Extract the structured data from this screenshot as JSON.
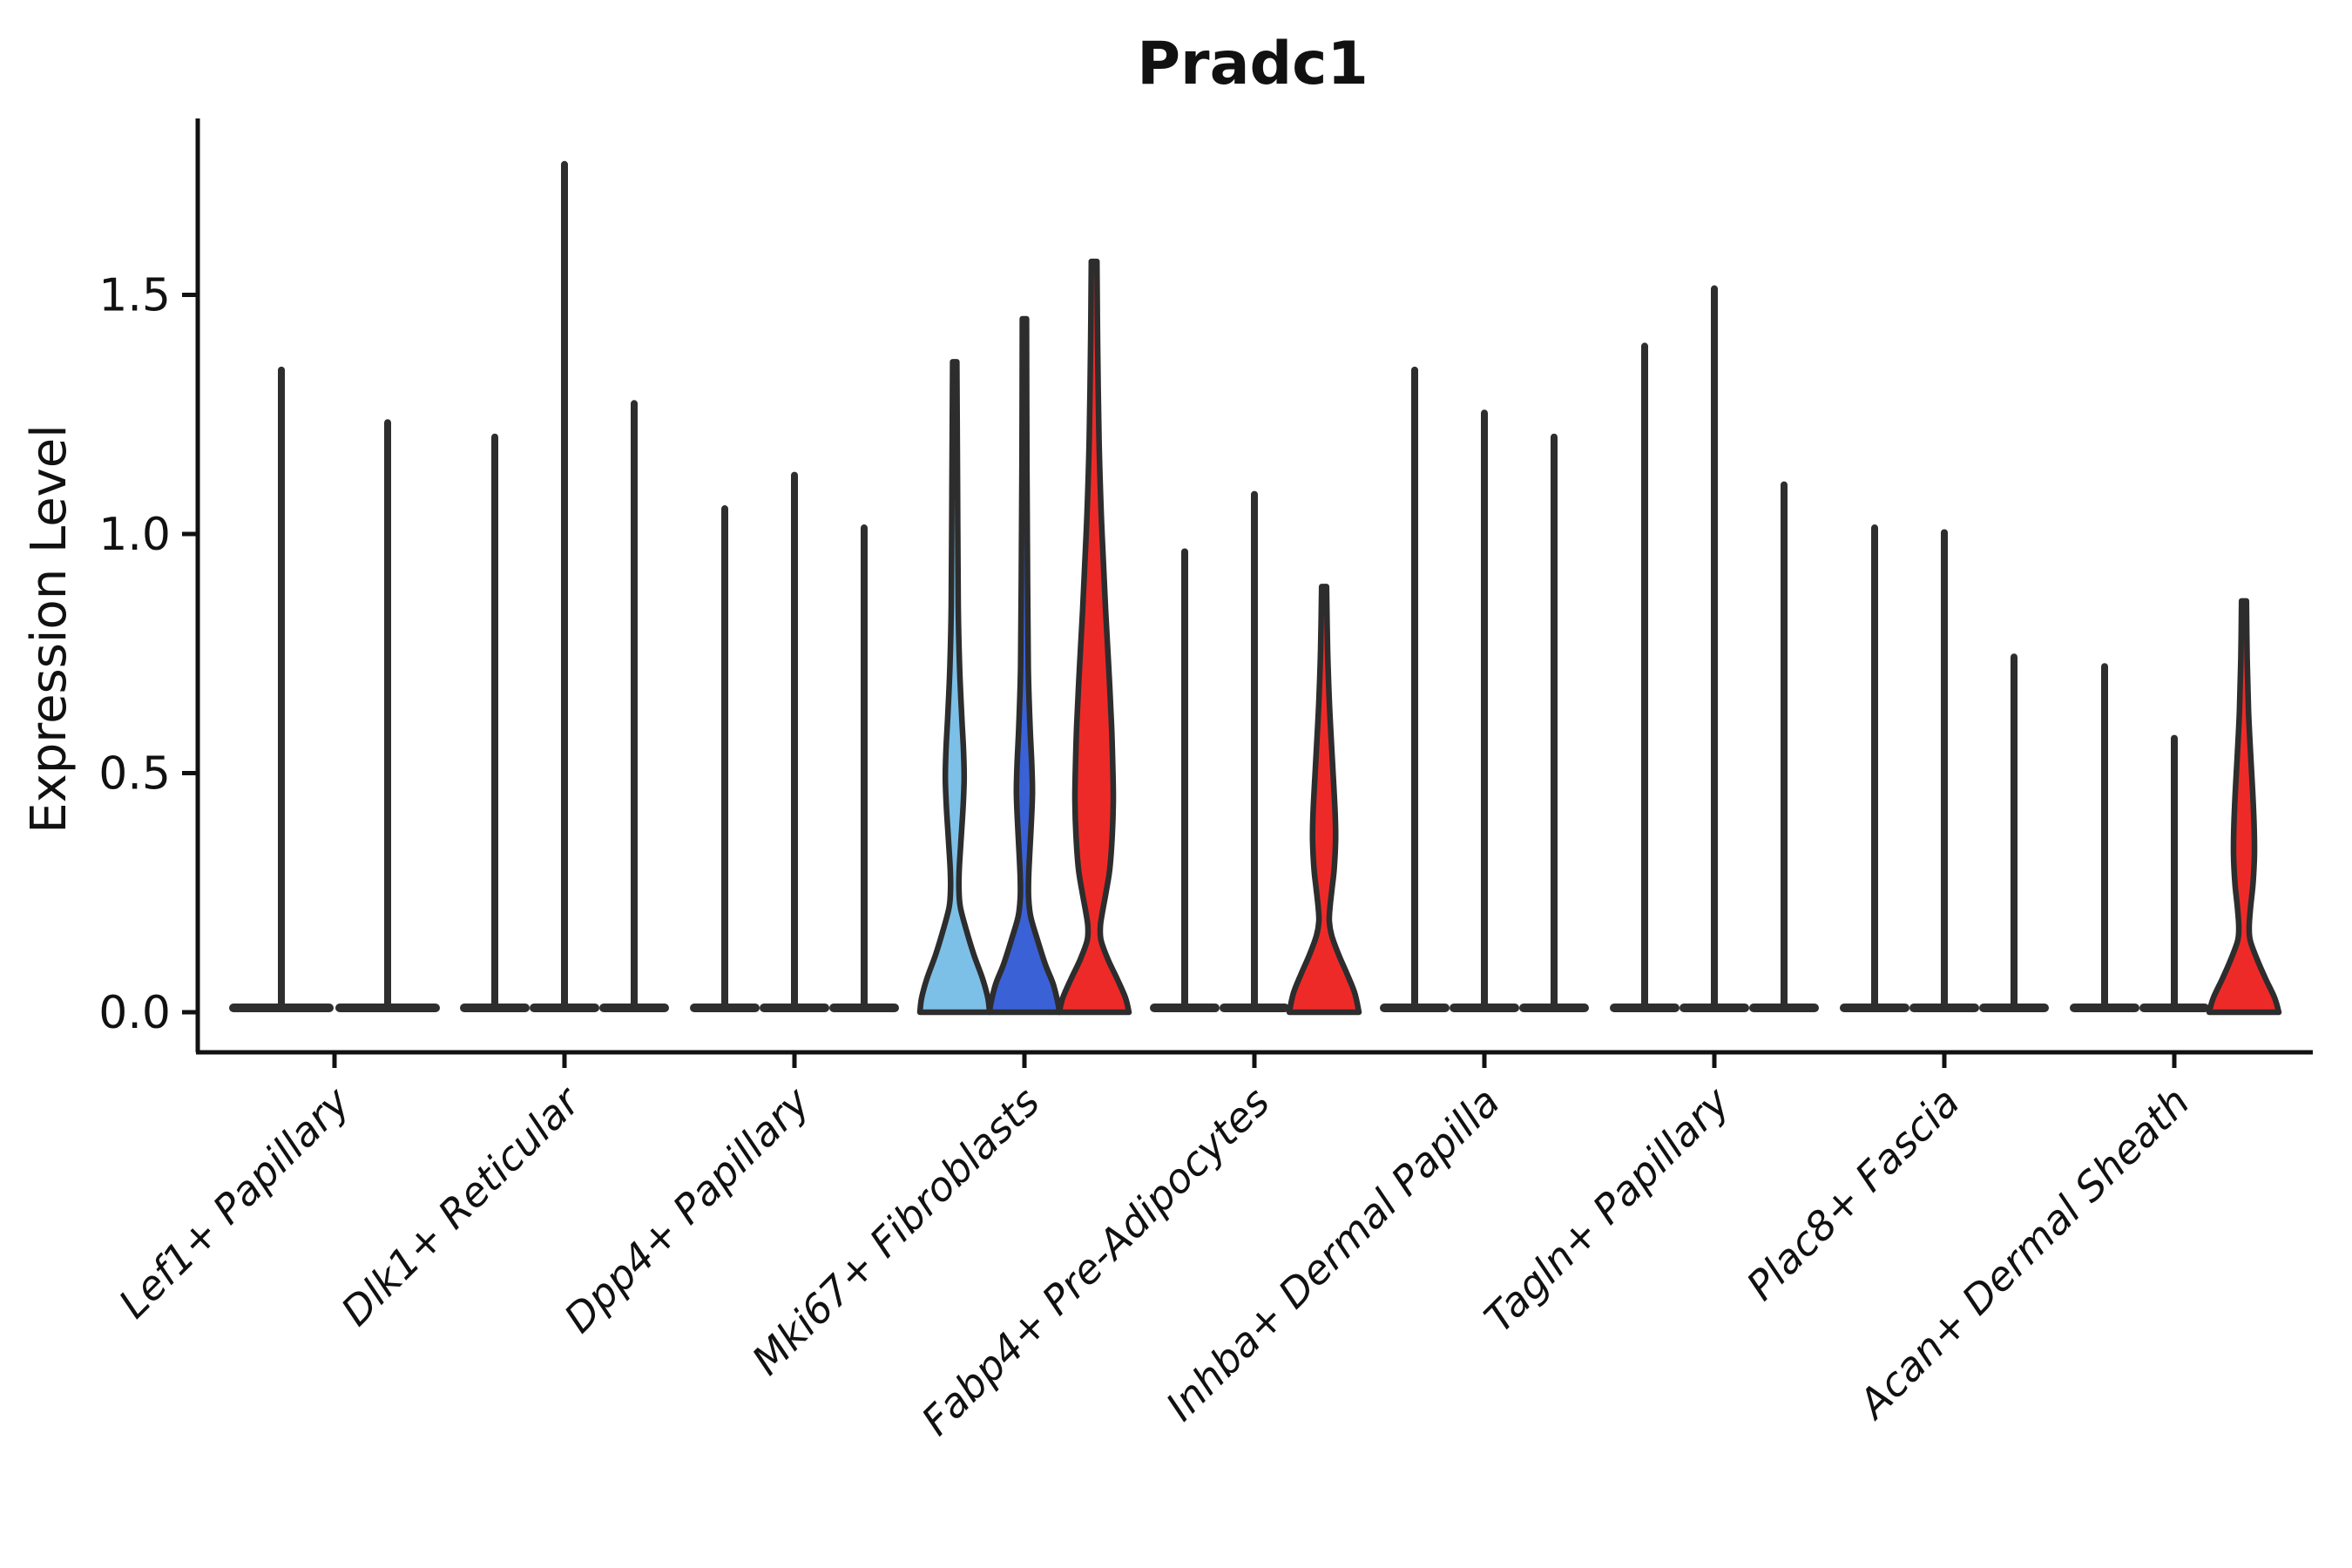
{
  "chart_data": {
    "type": "violin",
    "title": "Pradc1",
    "ylabel": "Expression Level",
    "xlabel": "",
    "ytick_labels": [
      "0.0",
      "0.5",
      "1.0",
      "1.5"
    ],
    "ytick_values": [
      0.0,
      0.5,
      1.0,
      1.5
    ],
    "ylim": [
      -0.085,
      1.87
    ],
    "grid": false,
    "legend": "none",
    "colors": {
      "dark": "#2e2e2e",
      "outline": "#2d2d2d",
      "axis": "#111111",
      "light_blue": "#7cc0e8",
      "royal_blue": "#3a62d6",
      "red": "#ee2a28"
    },
    "groups": [
      {
        "label": "Lef1+ Papillary",
        "violins": [
          {
            "max": 1.35,
            "fill": "dark"
          },
          {
            "max": 1.24,
            "fill": "dark"
          }
        ]
      },
      {
        "label": "Dlk1+ Reticular",
        "violins": [
          {
            "max": 1.21,
            "fill": "dark"
          },
          {
            "max": 1.78,
            "fill": "dark"
          },
          {
            "max": 1.28,
            "fill": "dark"
          }
        ]
      },
      {
        "label": "Dpp4+ Papillary",
        "violins": [
          {
            "max": 1.06,
            "fill": "dark"
          },
          {
            "max": 1.13,
            "fill": "dark"
          },
          {
            "max": 1.02,
            "fill": "dark"
          }
        ]
      },
      {
        "label": "Mki67+ Fibroblasts",
        "violins": [
          {
            "max": 1.36,
            "fill": "light_blue",
            "profile": [
              [
                1.36,
                0.06
              ],
              [
                1.1,
                0.08
              ],
              [
                0.85,
                0.1
              ],
              [
                0.72,
                0.14
              ],
              [
                0.62,
                0.2
              ],
              [
                0.55,
                0.25
              ],
              [
                0.49,
                0.27
              ],
              [
                0.43,
                0.24
              ],
              [
                0.36,
                0.18
              ],
              [
                0.3,
                0.13
              ],
              [
                0.26,
                0.12
              ],
              [
                0.22,
                0.16
              ],
              [
                0.17,
                0.34
              ],
              [
                0.12,
                0.55
              ],
              [
                0.07,
                0.8
              ],
              [
                0.03,
                0.95
              ],
              [
                0.0,
                1.0
              ]
            ]
          },
          {
            "max": 1.45,
            "fill": "royal_blue",
            "profile": [
              [
                1.45,
                0.06
              ],
              [
                1.15,
                0.07
              ],
              [
                0.9,
                0.09
              ],
              [
                0.72,
                0.11
              ],
              [
                0.6,
                0.16
              ],
              [
                0.52,
                0.21
              ],
              [
                0.46,
                0.23
              ],
              [
                0.4,
                0.2
              ],
              [
                0.33,
                0.15
              ],
              [
                0.28,
                0.12
              ],
              [
                0.24,
                0.12
              ],
              [
                0.2,
                0.18
              ],
              [
                0.15,
                0.38
              ],
              [
                0.1,
                0.6
              ],
              [
                0.06,
                0.82
              ],
              [
                0.02,
                0.96
              ],
              [
                0.0,
                1.0
              ]
            ]
          },
          {
            "max": 1.57,
            "fill": "red",
            "profile": [
              [
                1.57,
                0.08
              ],
              [
                1.4,
                0.1
              ],
              [
                1.2,
                0.14
              ],
              [
                1.05,
                0.2
              ],
              [
                0.95,
                0.26
              ],
              [
                0.84,
                0.33
              ],
              [
                0.72,
                0.42
              ],
              [
                0.6,
                0.5
              ],
              [
                0.5,
                0.54
              ],
              [
                0.44,
                0.55
              ],
              [
                0.37,
                0.52
              ],
              [
                0.3,
                0.45
              ],
              [
                0.25,
                0.34
              ],
              [
                0.21,
                0.24
              ],
              [
                0.18,
                0.18
              ],
              [
                0.15,
                0.2
              ],
              [
                0.11,
                0.4
              ],
              [
                0.07,
                0.66
              ],
              [
                0.03,
                0.9
              ],
              [
                0.0,
                1.0
              ]
            ]
          }
        ]
      },
      {
        "label": "Fabp4+ Pre-Adipocytes",
        "violins": [
          {
            "max": 0.97,
            "fill": "dark"
          },
          {
            "max": 1.09,
            "fill": "dark"
          },
          {
            "max": 0.89,
            "fill": "red",
            "profile": [
              [
                0.89,
                0.07
              ],
              [
                0.76,
                0.1
              ],
              [
                0.65,
                0.15
              ],
              [
                0.55,
                0.22
              ],
              [
                0.47,
                0.28
              ],
              [
                0.41,
                0.32
              ],
              [
                0.36,
                0.33
              ],
              [
                0.3,
                0.29
              ],
              [
                0.26,
                0.23
              ],
              [
                0.22,
                0.17
              ],
              [
                0.19,
                0.15
              ],
              [
                0.16,
                0.22
              ],
              [
                0.12,
                0.42
              ],
              [
                0.08,
                0.66
              ],
              [
                0.04,
                0.88
              ],
              [
                0.0,
                1.0
              ]
            ]
          }
        ]
      },
      {
        "label": "Inhba+ Dermal Papilla",
        "violins": [
          {
            "max": 1.35,
            "fill": "dark"
          },
          {
            "max": 1.26,
            "fill": "dark"
          },
          {
            "max": 1.21,
            "fill": "dark"
          }
        ]
      },
      {
        "label": "Tagln+ Papillary",
        "violins": [
          {
            "max": 1.4,
            "fill": "dark"
          },
          {
            "max": 1.52,
            "fill": "dark"
          },
          {
            "max": 1.11,
            "fill": "dark"
          }
        ]
      },
      {
        "label": "Plac8+ Fascia",
        "violins": [
          {
            "max": 1.02,
            "fill": "dark"
          },
          {
            "max": 1.01,
            "fill": "dark"
          },
          {
            "max": 0.75,
            "fill": "dark"
          }
        ]
      },
      {
        "label": "Acan+ Dermal Sheath",
        "violins": [
          {
            "max": 0.73,
            "fill": "dark"
          },
          {
            "max": 0.58,
            "fill": "dark"
          },
          {
            "max": 0.86,
            "fill": "red",
            "profile": [
              [
                0.86,
                0.07
              ],
              [
                0.74,
                0.09
              ],
              [
                0.63,
                0.13
              ],
              [
                0.54,
                0.19
              ],
              [
                0.46,
                0.25
              ],
              [
                0.39,
                0.29
              ],
              [
                0.33,
                0.3
              ],
              [
                0.27,
                0.26
              ],
              [
                0.22,
                0.19
              ],
              [
                0.18,
                0.15
              ],
              [
                0.15,
                0.18
              ],
              [
                0.11,
                0.38
              ],
              [
                0.07,
                0.62
              ],
              [
                0.03,
                0.88
              ],
              [
                0.0,
                1.0
              ]
            ]
          }
        ]
      }
    ]
  }
}
